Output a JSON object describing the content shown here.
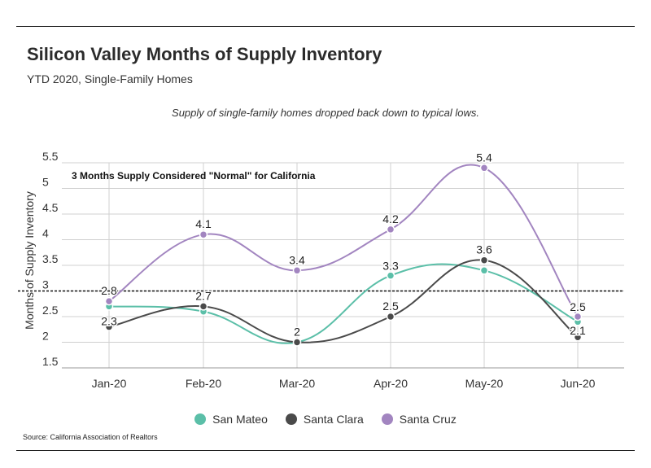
{
  "header": {
    "title": "Silicon Valley Months of Supply Inventory",
    "subtitle": "YTD 2020, Single-Family Homes",
    "annotation": "Supply of single-family homes dropped back down to typical lows.",
    "source": "Source:  California Association of Realtors"
  },
  "chart_data": {
    "type": "line",
    "ylabel": "Months of Supply Inventory",
    "categories": [
      "Jan-20",
      "Feb-20",
      "Mar-20",
      "Apr-20",
      "May-20",
      "Jun-20"
    ],
    "ylim": [
      1.5,
      5.5
    ],
    "yticks": [
      "1.5",
      "2",
      "2.5",
      "3",
      "3.5",
      "4",
      "4.5",
      "5",
      "5.5"
    ],
    "grid": "horizontal",
    "legend_placement": "bottom",
    "reference_line": {
      "value": 3,
      "label": "3 Months Supply Considered \"Normal\" for California"
    },
    "series": [
      {
        "name": "San Mateo",
        "color": "#5bbfa8",
        "values": [
          2.7,
          2.6,
          2.0,
          3.3,
          3.4,
          2.4
        ],
        "labels": [
          null,
          null,
          null,
          "3.3",
          null,
          null
        ]
      },
      {
        "name": "Santa Clara",
        "color": "#4a4a4a",
        "values": [
          2.3,
          2.7,
          2.0,
          2.5,
          3.6,
          2.1
        ],
        "labels": [
          "2.3",
          "2.7",
          "2",
          "2.5",
          "3.6",
          "2.1"
        ]
      },
      {
        "name": "Santa Cruz",
        "color": "#a285c0",
        "values": [
          2.8,
          4.1,
          3.4,
          4.2,
          5.4,
          2.5
        ],
        "labels": [
          "2.8",
          "4.1",
          "3.4",
          "4.2",
          "5.4",
          "2.5"
        ]
      }
    ]
  }
}
